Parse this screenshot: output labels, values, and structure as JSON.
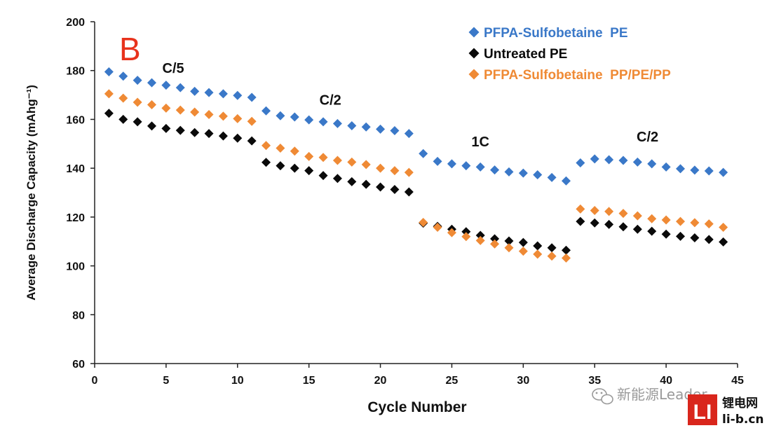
{
  "chart_data": {
    "type": "scatter",
    "panel_label": "B",
    "xlabel": "Cycle Number",
    "ylabel": "Average Discharge Capacity (mAhg⁻¹)",
    "xlim": [
      0,
      45
    ],
    "ylim": [
      60,
      200
    ],
    "xticks": [
      0,
      5,
      10,
      15,
      20,
      25,
      30,
      35,
      40,
      45
    ],
    "yticks": [
      60,
      80,
      100,
      120,
      140,
      160,
      180,
      200
    ],
    "grid": false,
    "legend_position": "top-right",
    "annotations": [
      {
        "text": "C/5",
        "x": 5.5,
        "y": 179
      },
      {
        "text": "C/2",
        "x": 16.5,
        "y": 166
      },
      {
        "text": "1C",
        "x": 27,
        "y": 149
      },
      {
        "text": "C/2",
        "x": 38.7,
        "y": 151
      }
    ],
    "series": [
      {
        "name": "PFPA-Sulfobetaine  PE",
        "color": "#3a78c8",
        "marker": "diamond",
        "x": [
          1,
          2,
          3,
          4,
          5,
          6,
          7,
          8,
          9,
          10,
          11,
          12,
          13,
          14,
          15,
          16,
          17,
          18,
          19,
          20,
          21,
          22,
          23,
          24,
          25,
          26,
          27,
          28,
          29,
          30,
          31,
          32,
          33,
          34,
          35,
          36,
          37,
          38,
          39,
          40,
          41,
          42,
          43,
          44
        ],
        "y": [
          179.5,
          177.7,
          176,
          175,
          174,
          173,
          171.5,
          171,
          170.5,
          169.8,
          169,
          163.5,
          161.5,
          161,
          159.8,
          159,
          158.3,
          157.4,
          156.9,
          156,
          155.4,
          154.2,
          146,
          142.8,
          141.8,
          141,
          140.5,
          139.3,
          138.5,
          138,
          137.3,
          136.2,
          134.8,
          142.2,
          143.8,
          143.5,
          143.2,
          142.5,
          141.8,
          140.5,
          139.8,
          139.2,
          138.9,
          138.3
        ]
      },
      {
        "name": "Untreated PE",
        "color": "#0a0a0a",
        "marker": "diamond",
        "x": [
          1,
          2,
          3,
          4,
          5,
          6,
          7,
          8,
          9,
          10,
          11,
          12,
          13,
          14,
          15,
          16,
          17,
          18,
          19,
          20,
          21,
          22,
          23,
          24,
          25,
          26,
          27,
          28,
          29,
          30,
          31,
          32,
          33,
          34,
          35,
          36,
          37,
          38,
          39,
          40,
          41,
          42,
          43,
          44
        ],
        "y": [
          162.5,
          160,
          159,
          157.3,
          156.3,
          155.5,
          154.6,
          154.2,
          153.2,
          152.3,
          151.2,
          142.4,
          141,
          140,
          139,
          137,
          135.8,
          134.5,
          133.4,
          132.3,
          131.3,
          130.3,
          117.5,
          116.2,
          115,
          114,
          112.5,
          111.1,
          110.2,
          109.6,
          108.2,
          107.4,
          106.4,
          118.2,
          117.6,
          117,
          116,
          115,
          114.2,
          113,
          112.1,
          111.5,
          110.8,
          109.8
        ]
      },
      {
        "name": "PFPA-Sulfobetaine  PP/PE/PP",
        "color": "#ef8a35",
        "marker": "diamond",
        "x": [
          1,
          2,
          3,
          4,
          5,
          6,
          7,
          8,
          9,
          10,
          11,
          12,
          13,
          14,
          15,
          16,
          17,
          18,
          19,
          20,
          21,
          22,
          23,
          24,
          25,
          26,
          27,
          28,
          29,
          30,
          31,
          32,
          33,
          34,
          35,
          36,
          37,
          38,
          39,
          40,
          41,
          42,
          43,
          44
        ],
        "y": [
          170.5,
          168.7,
          167,
          166,
          164.6,
          163.8,
          163,
          162,
          161.3,
          160.3,
          159.2,
          149.3,
          148.2,
          147,
          144.8,
          144.4,
          143.2,
          142.5,
          141.5,
          140,
          139,
          138.3,
          117.8,
          115.8,
          113.6,
          112,
          110.4,
          109,
          107.4,
          106,
          104.8,
          104,
          103.2,
          123.3,
          122.7,
          122.3,
          121.5,
          120.5,
          119.3,
          118.8,
          118.2,
          117.7,
          117.2,
          115.8
        ]
      }
    ]
  },
  "watermark": {
    "text": "新能源Leader",
    "icon": "wechat-icon"
  },
  "logo": {
    "mark": "LI",
    "name": "锂电网",
    "url": "li-b.cn",
    "color": "#d9261c"
  }
}
